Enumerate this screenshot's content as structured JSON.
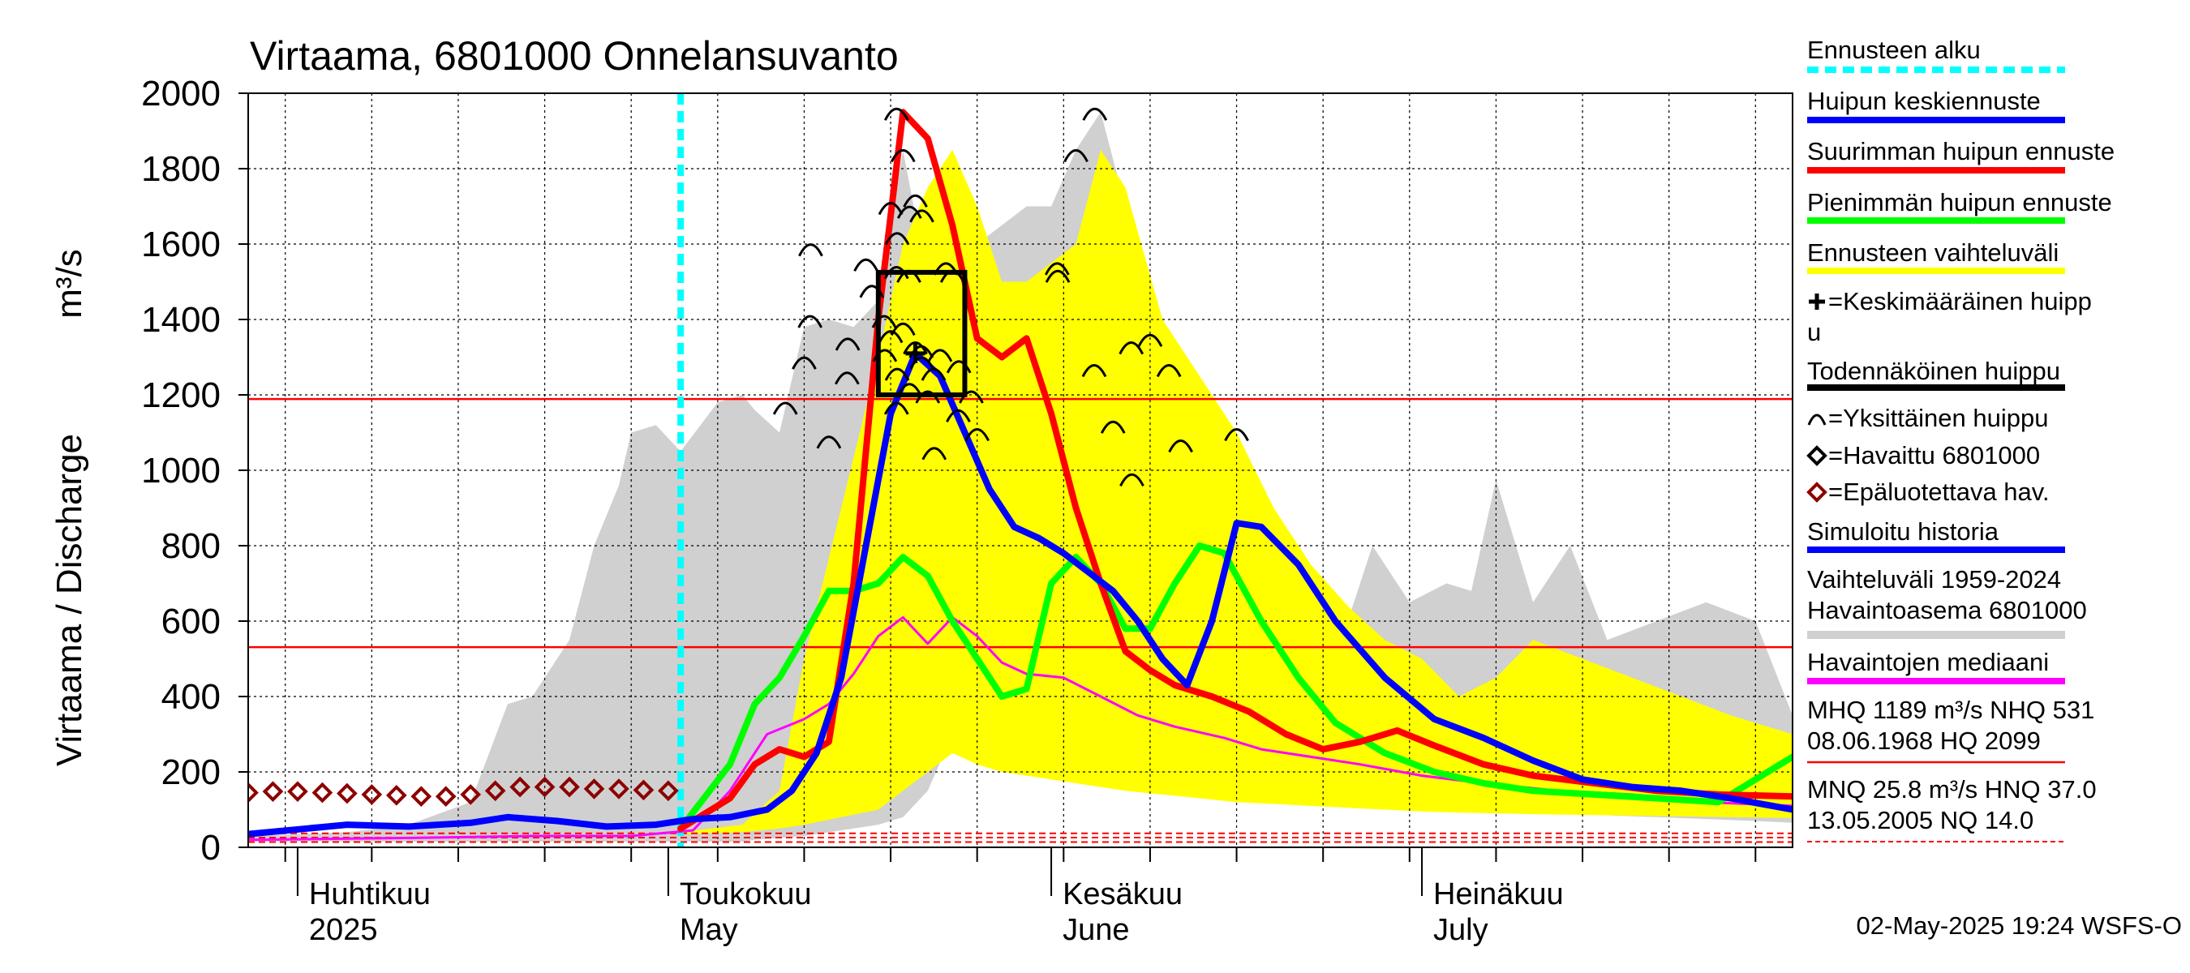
{
  "chart_data": {
    "type": "line",
    "title": "Virtaama, 6801000 Onnelansuvanto",
    "ylabel": "Virtaama / Discharge",
    "yunit": "m³/s",
    "ylim": [
      0,
      2000
    ],
    "yticks": [
      "0",
      "200",
      "400",
      "600",
      "800",
      "1000",
      "1200",
      "1400",
      "1600",
      "1800",
      "2000"
    ],
    "xlim": [
      "2025-03-28",
      "2025-07-31"
    ],
    "months": [
      {
        "date": "2025-04-01",
        "fi": "Huhtikuu",
        "en": "2025"
      },
      {
        "date": "2025-05-01",
        "fi": "Toukokuu",
        "en": "May"
      },
      {
        "date": "2025-06-01",
        "fi": "Kesäkuu",
        "en": "June"
      },
      {
        "date": "2025-07-01",
        "fi": "Heinäkuu",
        "en": "July"
      }
    ],
    "grid": true,
    "legend_position": "right",
    "forecast_start": "2025-05-02",
    "reference_lines": [
      {
        "name": "MHQ",
        "value": 1189,
        "color": "#ff0000",
        "style": "solid"
      },
      {
        "name": "NHQ",
        "value": 531,
        "color": "#ff0000",
        "style": "solid"
      },
      {
        "name": "MNQ",
        "value": 25.8,
        "color": "#ff0000",
        "style": "dashed"
      },
      {
        "name": "HNQ",
        "value": 37.0,
        "color": "#ff0000",
        "style": "dashed"
      },
      {
        "name": "NQ",
        "value": 14.0,
        "color": "#ff0000",
        "style": "dashed"
      }
    ],
    "historical_range": {
      "name": "Vaihteluväli 1959-2024 Havaintoasema 6801000",
      "color": "#d0d0d0",
      "x": [
        "2025-03-28",
        "2025-04-05",
        "2025-04-10",
        "2025-04-15",
        "2025-04-18",
        "2025-04-20",
        "2025-04-23",
        "2025-04-25",
        "2025-04-27",
        "2025-04-28",
        "2025-04-30",
        "2025-05-02",
        "2025-05-05",
        "2025-05-07",
        "2025-05-08",
        "2025-05-10",
        "2025-05-12",
        "2025-05-14",
        "2025-05-16",
        "2025-05-18",
        "2025-05-20",
        "2025-05-22",
        "2025-05-24",
        "2025-05-26",
        "2025-05-28",
        "2025-05-30",
        "2025-06-01",
        "2025-06-03",
        "2025-06-05",
        "2025-06-07",
        "2025-06-09",
        "2025-06-11",
        "2025-06-13",
        "2025-06-15",
        "2025-06-17",
        "2025-06-19",
        "2025-06-22",
        "2025-06-25",
        "2025-06-27",
        "2025-06-30",
        "2025-07-03",
        "2025-07-05",
        "2025-07-07",
        "2025-07-10",
        "2025-07-13",
        "2025-07-16",
        "2025-07-20",
        "2025-07-24",
        "2025-07-28",
        "2025-07-31"
      ],
      "upper": [
        30,
        40,
        60,
        120,
        380,
        400,
        550,
        800,
        960,
        1100,
        1120,
        1050,
        1180,
        1200,
        1160,
        1100,
        1380,
        1400,
        1380,
        1450,
        1850,
        1500,
        1560,
        1600,
        1650,
        1700,
        1700,
        1850,
        1950,
        1700,
        1400,
        1200,
        1110,
        1020,
        850,
        800,
        700,
        600,
        800,
        650,
        700,
        680,
        975,
        650,
        800,
        550,
        600,
        650,
        600,
        350
      ],
      "lower": [
        15,
        15,
        15,
        15,
        15,
        15,
        15,
        15,
        15,
        15,
        15,
        15,
        15,
        15,
        20,
        25,
        30,
        40,
        50,
        60,
        80,
        150,
        300,
        380,
        400,
        350,
        300,
        280,
        250,
        230,
        210,
        190,
        180,
        170,
        160,
        150,
        140,
        130,
        120,
        110,
        110,
        100,
        100,
        95,
        90,
        85,
        80,
        75,
        70,
        65
      ]
    },
    "forecast_range": {
      "name": "Ennusteen vaihteluväli",
      "color": "#ffff00",
      "x": [
        "2025-05-02",
        "2025-05-07",
        "2025-05-10",
        "2025-05-12",
        "2025-05-15",
        "2025-05-18",
        "2025-05-20",
        "2025-05-22",
        "2025-05-24",
        "2025-05-26",
        "2025-05-28",
        "2025-05-30",
        "2025-06-01",
        "2025-06-03",
        "2025-06-05",
        "2025-06-07",
        "2025-06-10",
        "2025-06-13",
        "2025-06-16",
        "2025-06-19",
        "2025-06-22",
        "2025-06-25",
        "2025-06-28",
        "2025-07-01",
        "2025-07-04",
        "2025-07-07",
        "2025-07-10",
        "2025-07-14",
        "2025-07-18",
        "2025-07-22",
        "2025-07-26",
        "2025-07-31"
      ],
      "upper": [
        40,
        60,
        150,
        500,
        900,
        1300,
        1600,
        1750,
        1850,
        1700,
        1500,
        1500,
        1550,
        1600,
        1850,
        1750,
        1400,
        1250,
        1100,
        900,
        750,
        640,
        550,
        500,
        400,
        450,
        550,
        500,
        450,
        400,
        350,
        300
      ],
      "lower": [
        35,
        40,
        50,
        60,
        80,
        100,
        150,
        200,
        250,
        220,
        200,
        190,
        180,
        170,
        160,
        150,
        140,
        130,
        120,
        115,
        110,
        105,
        100,
        95,
        92,
        90,
        88,
        86,
        84,
        82,
        80,
        78
      ]
    },
    "series": [
      {
        "name": "Huipun keskiennuste",
        "color": "#0000ff",
        "x": [
          "2025-03-28",
          "2025-04-05",
          "2025-04-10",
          "2025-04-15",
          "2025-04-18",
          "2025-04-22",
          "2025-04-26",
          "2025-04-30",
          "2025-05-03",
          "2025-05-06",
          "2025-05-09",
          "2025-05-11",
          "2025-05-13",
          "2025-05-15",
          "2025-05-17",
          "2025-05-19",
          "2025-05-21",
          "2025-05-23",
          "2025-05-25",
          "2025-05-27",
          "2025-05-29",
          "2025-05-31",
          "2025-06-02",
          "2025-06-04",
          "2025-06-06",
          "2025-06-08",
          "2025-06-10",
          "2025-06-12",
          "2025-06-14",
          "2025-06-16",
          "2025-06-18",
          "2025-06-21",
          "2025-06-24",
          "2025-06-28",
          "2025-07-02",
          "2025-07-06",
          "2025-07-10",
          "2025-07-14",
          "2025-07-18",
          "2025-07-22",
          "2025-07-26",
          "2025-07-31"
        ],
        "y": [
          35,
          60,
          55,
          65,
          80,
          70,
          55,
          60,
          75,
          80,
          100,
          150,
          250,
          450,
          800,
          1150,
          1310,
          1250,
          1100,
          950,
          850,
          820,
          780,
          730,
          680,
          600,
          500,
          430,
          600,
          860,
          850,
          750,
          600,
          450,
          340,
          290,
          230,
          180,
          160,
          150,
          130,
          100
        ]
      },
      {
        "name": "Suurimman huipun ennuste",
        "color": "#ff0000",
        "x": [
          "2025-05-02",
          "2025-05-06",
          "2025-05-08",
          "2025-05-10",
          "2025-05-12",
          "2025-05-14",
          "2025-05-16",
          "2025-05-18",
          "2025-05-20",
          "2025-05-22",
          "2025-05-24",
          "2025-05-26",
          "2025-05-28",
          "2025-05-30",
          "2025-06-01",
          "2025-06-03",
          "2025-06-05",
          "2025-06-07",
          "2025-06-09",
          "2025-06-11",
          "2025-06-14",
          "2025-06-17",
          "2025-06-20",
          "2025-06-23",
          "2025-06-26",
          "2025-06-29",
          "2025-07-02",
          "2025-07-06",
          "2025-07-10",
          "2025-07-15",
          "2025-07-20",
          "2025-07-25",
          "2025-07-31"
        ],
        "y": [
          50,
          130,
          220,
          260,
          240,
          280,
          700,
          1400,
          1950,
          1880,
          1650,
          1350,
          1300,
          1350,
          1150,
          900,
          700,
          520,
          470,
          430,
          400,
          360,
          300,
          260,
          280,
          310,
          270,
          220,
          190,
          170,
          150,
          140,
          135
        ]
      },
      {
        "name": "Pienimmän huipun ennuste",
        "color": "#00ff00",
        "x": [
          "2025-05-02",
          "2025-05-06",
          "2025-05-08",
          "2025-05-10",
          "2025-05-12",
          "2025-05-14",
          "2025-05-16",
          "2025-05-18",
          "2025-05-20",
          "2025-05-22",
          "2025-05-24",
          "2025-05-26",
          "2025-05-28",
          "2025-05-30",
          "2025-06-01",
          "2025-06-03",
          "2025-06-05",
          "2025-06-07",
          "2025-06-09",
          "2025-06-11",
          "2025-06-13",
          "2025-06-15",
          "2025-06-18",
          "2025-06-21",
          "2025-06-24",
          "2025-06-28",
          "2025-07-02",
          "2025-07-06",
          "2025-07-10",
          "2025-07-15",
          "2025-07-20",
          "2025-07-25",
          "2025-07-28",
          "2025-07-31"
        ],
        "y": [
          50,
          220,
          380,
          450,
          560,
          680,
          680,
          700,
          770,
          720,
          600,
          500,
          400,
          420,
          700,
          770,
          700,
          580,
          580,
          700,
          800,
          780,
          600,
          450,
          330,
          250,
          200,
          170,
          150,
          140,
          130,
          120,
          180,
          240
        ]
      },
      {
        "name": "Havaintojen mediaani",
        "color": "#ff00ff",
        "x": [
          "2025-03-28",
          "2025-04-10",
          "2025-04-20",
          "2025-04-28",
          "2025-05-03",
          "2025-05-06",
          "2025-05-09",
          "2025-05-12",
          "2025-05-14",
          "2025-05-16",
          "2025-05-18",
          "2025-05-20",
          "2025-05-22",
          "2025-05-24",
          "2025-05-26",
          "2025-05-28",
          "2025-05-30",
          "2025-06-02",
          "2025-06-05",
          "2025-06-08",
          "2025-06-11",
          "2025-06-15",
          "2025-06-18",
          "2025-06-22",
          "2025-06-26",
          "2025-07-01",
          "2025-07-06",
          "2025-07-12",
          "2025-07-18",
          "2025-07-24",
          "2025-07-31"
        ],
        "y": [
          20,
          25,
          30,
          30,
          45,
          150,
          300,
          340,
          380,
          460,
          560,
          610,
          540,
          610,
          560,
          490,
          460,
          450,
          400,
          350,
          320,
          290,
          260,
          240,
          220,
          190,
          170,
          150,
          140,
          120,
          110
        ]
      }
    ],
    "observed": {
      "name": "Epäluotettava hav.",
      "color": "#8b0000",
      "x": [
        "2025-03-28",
        "2025-03-30",
        "2025-04-01",
        "2025-04-03",
        "2025-04-05",
        "2025-04-07",
        "2025-04-09",
        "2025-04-11",
        "2025-04-13",
        "2025-04-15",
        "2025-04-17",
        "2025-04-19",
        "2025-04-21",
        "2025-04-23",
        "2025-04-25",
        "2025-04-27",
        "2025-04-29",
        "2025-05-01"
      ],
      "y": [
        145,
        148,
        148,
        145,
        143,
        140,
        138,
        135,
        135,
        140,
        150,
        160,
        160,
        160,
        155,
        155,
        152,
        150
      ]
    },
    "single_peaks": {
      "name": "Yksittäinen huippu",
      "x": [
        "2025-05-11",
        "2025-05-12",
        "2025-05-12",
        "2025-05-13",
        "2025-05-14",
        "2025-05-15",
        "2025-05-16",
        "2025-05-17",
        "2025-05-18",
        "2025-05-18",
        "2025-05-19",
        "2025-05-19",
        "2025-05-19",
        "2025-05-19",
        "2025-05-19",
        "2025-05-20",
        "2025-05-20",
        "2025-05-20",
        "2025-05-20",
        "2025-05-20",
        "2025-05-20",
        "2025-05-20",
        "2025-05-21",
        "2025-05-21",
        "2025-05-21",
        "2025-05-21",
        "2025-05-21",
        "2025-05-22",
        "2025-05-22",
        "2025-05-22",
        "2025-05-23",
        "2025-05-23",
        "2025-05-24",
        "2025-05-24",
        "2025-05-24",
        "2025-05-25",
        "2025-05-25",
        "2025-05-26",
        "2025-06-01",
        "2025-06-02",
        "2025-06-03",
        "2025-06-04",
        "2025-06-05",
        "2025-06-06",
        "2025-06-07",
        "2025-06-08",
        "2025-06-09",
        "2025-06-10",
        "2025-06-12",
        "2025-06-16"
      ],
      "y": [
        1170,
        1290,
        1590,
        1400,
        1080,
        1340,
        1250,
        1550,
        1310,
        1480,
        1700,
        1620,
        1400,
        1360,
        1260,
        1950,
        1840,
        1690,
        1530,
        1380,
        1220,
        1170,
        1720,
        1680,
        1520,
        1330,
        1290,
        1320,
        1200,
        1050,
        1260,
        1310,
        1280,
        1540,
        1520,
        1200,
        1150,
        1100,
        1520,
        1540,
        1840,
        1950,
        1270,
        1120,
        980,
        1330,
        1350,
        1270,
        1070,
        1100
      ]
    },
    "mean_peak": {
      "name": "Keskimääräinen huippu",
      "x": "2025-05-21",
      "y": 1310
    },
    "probable_peak_box": {
      "name": "Todennäköinen huippu",
      "x0": "2025-05-18",
      "x1": "2025-05-25",
      "y0": 1200,
      "y1": 1525
    }
  },
  "legend": [
    {
      "label": "Ennusteen alku",
      "color": "#00ffff",
      "style": "dashed"
    },
    {
      "label": "Huipun keskiennuste",
      "color": "#0000ff",
      "style": "line"
    },
    {
      "label": "Suurimman huipun ennuste",
      "color": "#ff0000",
      "style": "line"
    },
    {
      "label": "Pienimmän huipun ennuste",
      "color": "#00ff00",
      "style": "line"
    },
    {
      "label": "Ennusteen vaihteluväli",
      "color": "#ffff00",
      "style": "line"
    },
    {
      "label": "=Keskimääräinen huipp",
      "label2": "u",
      "color": "#000000",
      "style": "plus"
    },
    {
      "label": "Todennäköinen huippu",
      "color": "#000000",
      "style": "line"
    },
    {
      "label": "=Yksittäinen huippu",
      "color": "#000000",
      "style": "arc"
    },
    {
      "label": "=Havaittu 6801000",
      "color": "#000000",
      "style": "diamond"
    },
    {
      "label": "=Epäluotettava hav.",
      "color": "#8b0000",
      "style": "diamond"
    },
    {
      "label": "Simuloitu historia",
      "color": "#0000ff",
      "style": "line"
    },
    {
      "label": "Vaihteluväli 1959-2024",
      "label2": " Havaintoasema 6801000",
      "color": "#d0d0d0",
      "style": "line"
    },
    {
      "label": "Havaintojen mediaani",
      "color": "#ff00ff",
      "style": "line"
    },
    {
      "label": "MHQ 1189 m³/s NHQ  531",
      "label2": "08.06.1968 HQ 2099",
      "color": "#ff0000",
      "style": "line"
    },
    {
      "label": "MNQ 25.8 m³/s HNQ 37.0",
      "label2": "13.05.2005 NQ 14.0",
      "color": "#ff0000",
      "style": "dashed"
    }
  ],
  "footer": {
    "timestamp": "02-May-2025 19:24 WSFS-O"
  }
}
